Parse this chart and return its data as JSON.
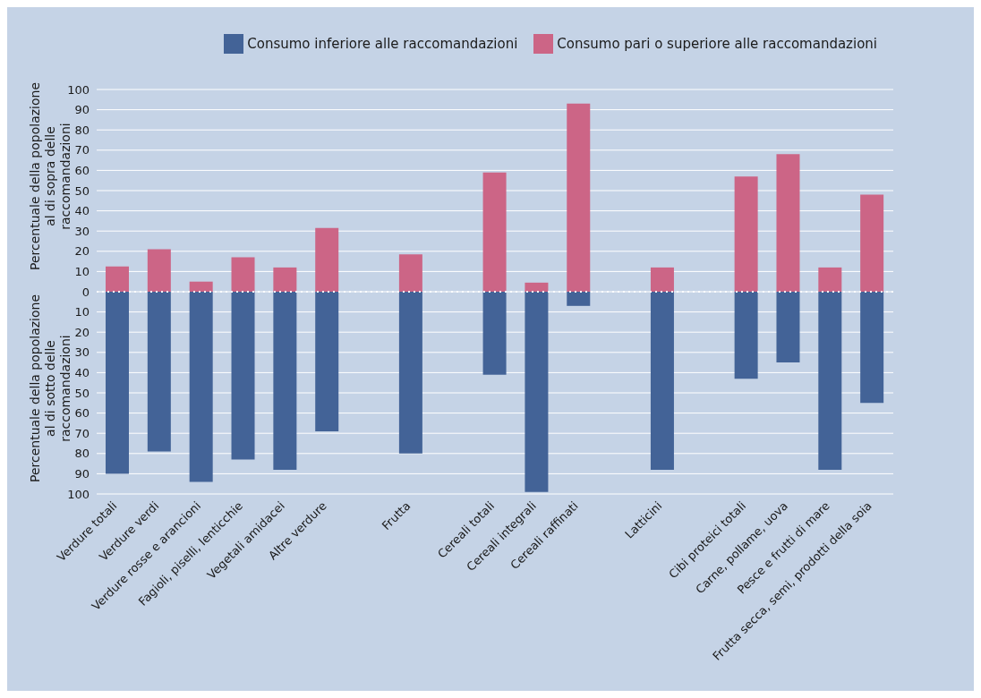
{
  "chart_data": {
    "type": "bar",
    "stacked": true,
    "categories": [
      "Verdure totali",
      "Verdure verdi",
      "Verdure rosse e arancioni",
      "Fagioli, piselli, lenticchie",
      "Vegetali amidacei",
      "Altre verdure",
      null,
      "Frutta",
      null,
      "Cereali totali",
      "Cereali integrali",
      "Cereali  raffinati",
      null,
      "Latticini",
      null,
      "Cibi proteici totali",
      "Carne, pollame, uova",
      "Pesce e frutti di mare",
      "Frutta secca, semi, prodotti della soia"
    ],
    "series": [
      {
        "name": "Consumo pari o superiore alle raccomandazioni",
        "color": "#cc6586",
        "values": [
          12.5,
          21,
          5,
          17,
          12,
          31.5,
          null,
          18.5,
          null,
          59,
          4.5,
          93,
          null,
          12,
          null,
          57,
          68,
          12,
          48
        ]
      },
      {
        "name": "Consumo inferiore alle raccomandazioni",
        "color": "#436397",
        "values": [
          -90,
          -79,
          -94,
          -83,
          -88,
          -69,
          null,
          -80,
          null,
          -41,
          -99,
          -7,
          null,
          -88,
          null,
          -43,
          -35,
          -88,
          -55
        ]
      }
    ],
    "ylabel": "Percentuale della popolazione al di sopra delle raccomandazioni",
    "annotations": [
      "Percentuale della popolazione al di sotto delle raccomandazioni"
    ],
    "ylim": [
      -100,
      100
    ],
    "yticks": [
      {
        "value": -100,
        "label": "100"
      },
      {
        "value": -90,
        "label": "90"
      },
      {
        "value": -80,
        "label": "80"
      },
      {
        "value": -70,
        "label": "70"
      },
      {
        "value": -60,
        "label": "60"
      },
      {
        "value": -50,
        "label": "50"
      },
      {
        "value": -40,
        "label": "40"
      },
      {
        "value": -30,
        "label": "30"
      },
      {
        "value": -20,
        "label": "20"
      },
      {
        "value": -10,
        "label": "10"
      },
      0,
      10,
      20,
      30,
      40,
      50,
      60,
      70,
      80,
      90,
      100
    ],
    "ref_lines": [
      {
        "axis": "y",
        "value": 0,
        "color": "#ffffff",
        "line_style": "dotted"
      }
    ],
    "grid": "y",
    "legend": "top right"
  }
}
